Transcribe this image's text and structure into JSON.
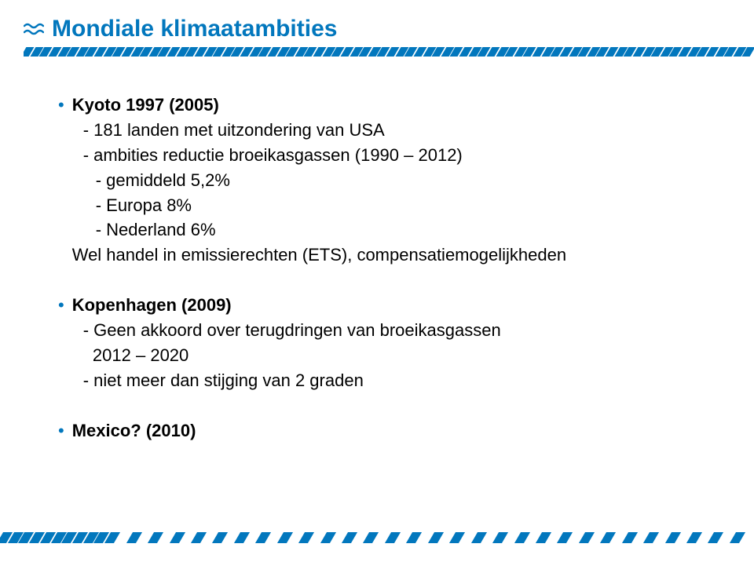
{
  "colors": {
    "accent": "#0277bd",
    "text": "#000000",
    "background": "#ffffff"
  },
  "title": "Mondiale klimaatambities",
  "items": [
    {
      "title": "Kyoto 1997 (2005)",
      "subs": [
        "- 181 landen met uitzondering van USA",
        "- ambities reductie broeikasgassen (1990 – 2012)"
      ],
      "subs2": [
        "- gemiddeld 5,2%",
        "- Europa 8%",
        "- Nederland 6%"
      ],
      "tail": "Wel handel in emissierechten (ETS), compensatiemogelijkheden"
    },
    {
      "title": "Kopenhagen (2009)",
      "subs": [
        "- Geen akkoord over terugdringen van broeikasgassen",
        "  2012 – 2020",
        "- niet meer dan stijging van 2 graden"
      ]
    },
    {
      "title": "Mexico? (2010)"
    }
  ]
}
